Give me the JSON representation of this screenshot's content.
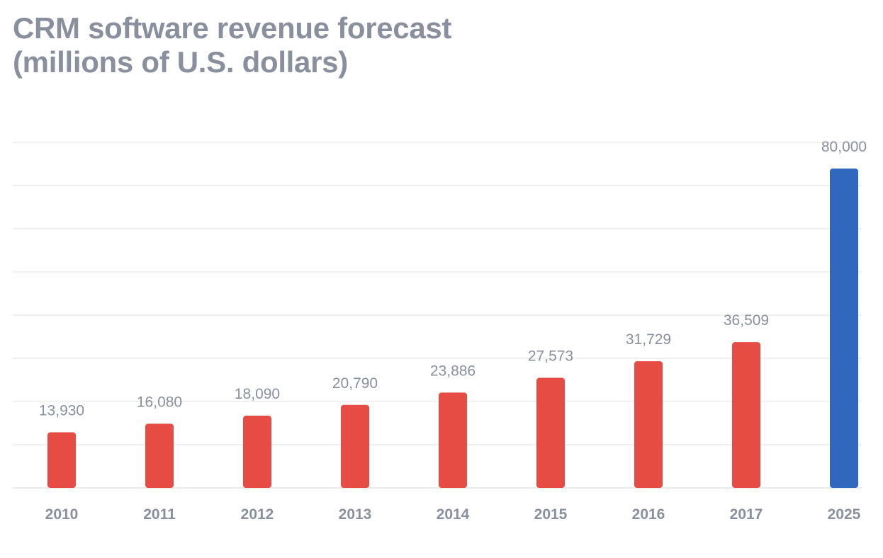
{
  "header": {
    "title_line1": "CRM software revenue forecast",
    "title_line2": "(millions of U.S. dollars)"
  },
  "chart_data": {
    "type": "bar",
    "title": "CRM software revenue forecast (millions of U.S. dollars)",
    "categories": [
      "2010",
      "2011",
      "2012",
      "2013",
      "2014",
      "2015",
      "2016",
      "2017",
      "2025"
    ],
    "values": [
      13930,
      16080,
      18090,
      20790,
      23886,
      27573,
      31729,
      36509,
      80000
    ],
    "data_labels": [
      "13,930",
      "16,080",
      "18,090",
      "20,790",
      "23,886",
      "27,573",
      "31,729",
      "36,509",
      "80,000"
    ],
    "bar_colors": [
      "#e74c44",
      "#e74c44",
      "#e74c44",
      "#e74c44",
      "#e74c44",
      "#e74c44",
      "#e74c44",
      "#e74c44",
      "#3068bd"
    ],
    "xlabel": "",
    "ylabel": "",
    "ylim": [
      0,
      80000
    ],
    "grid": true,
    "legend": "none",
    "text_color": "#8a8f9e",
    "grid_color": "#ebebeb"
  }
}
